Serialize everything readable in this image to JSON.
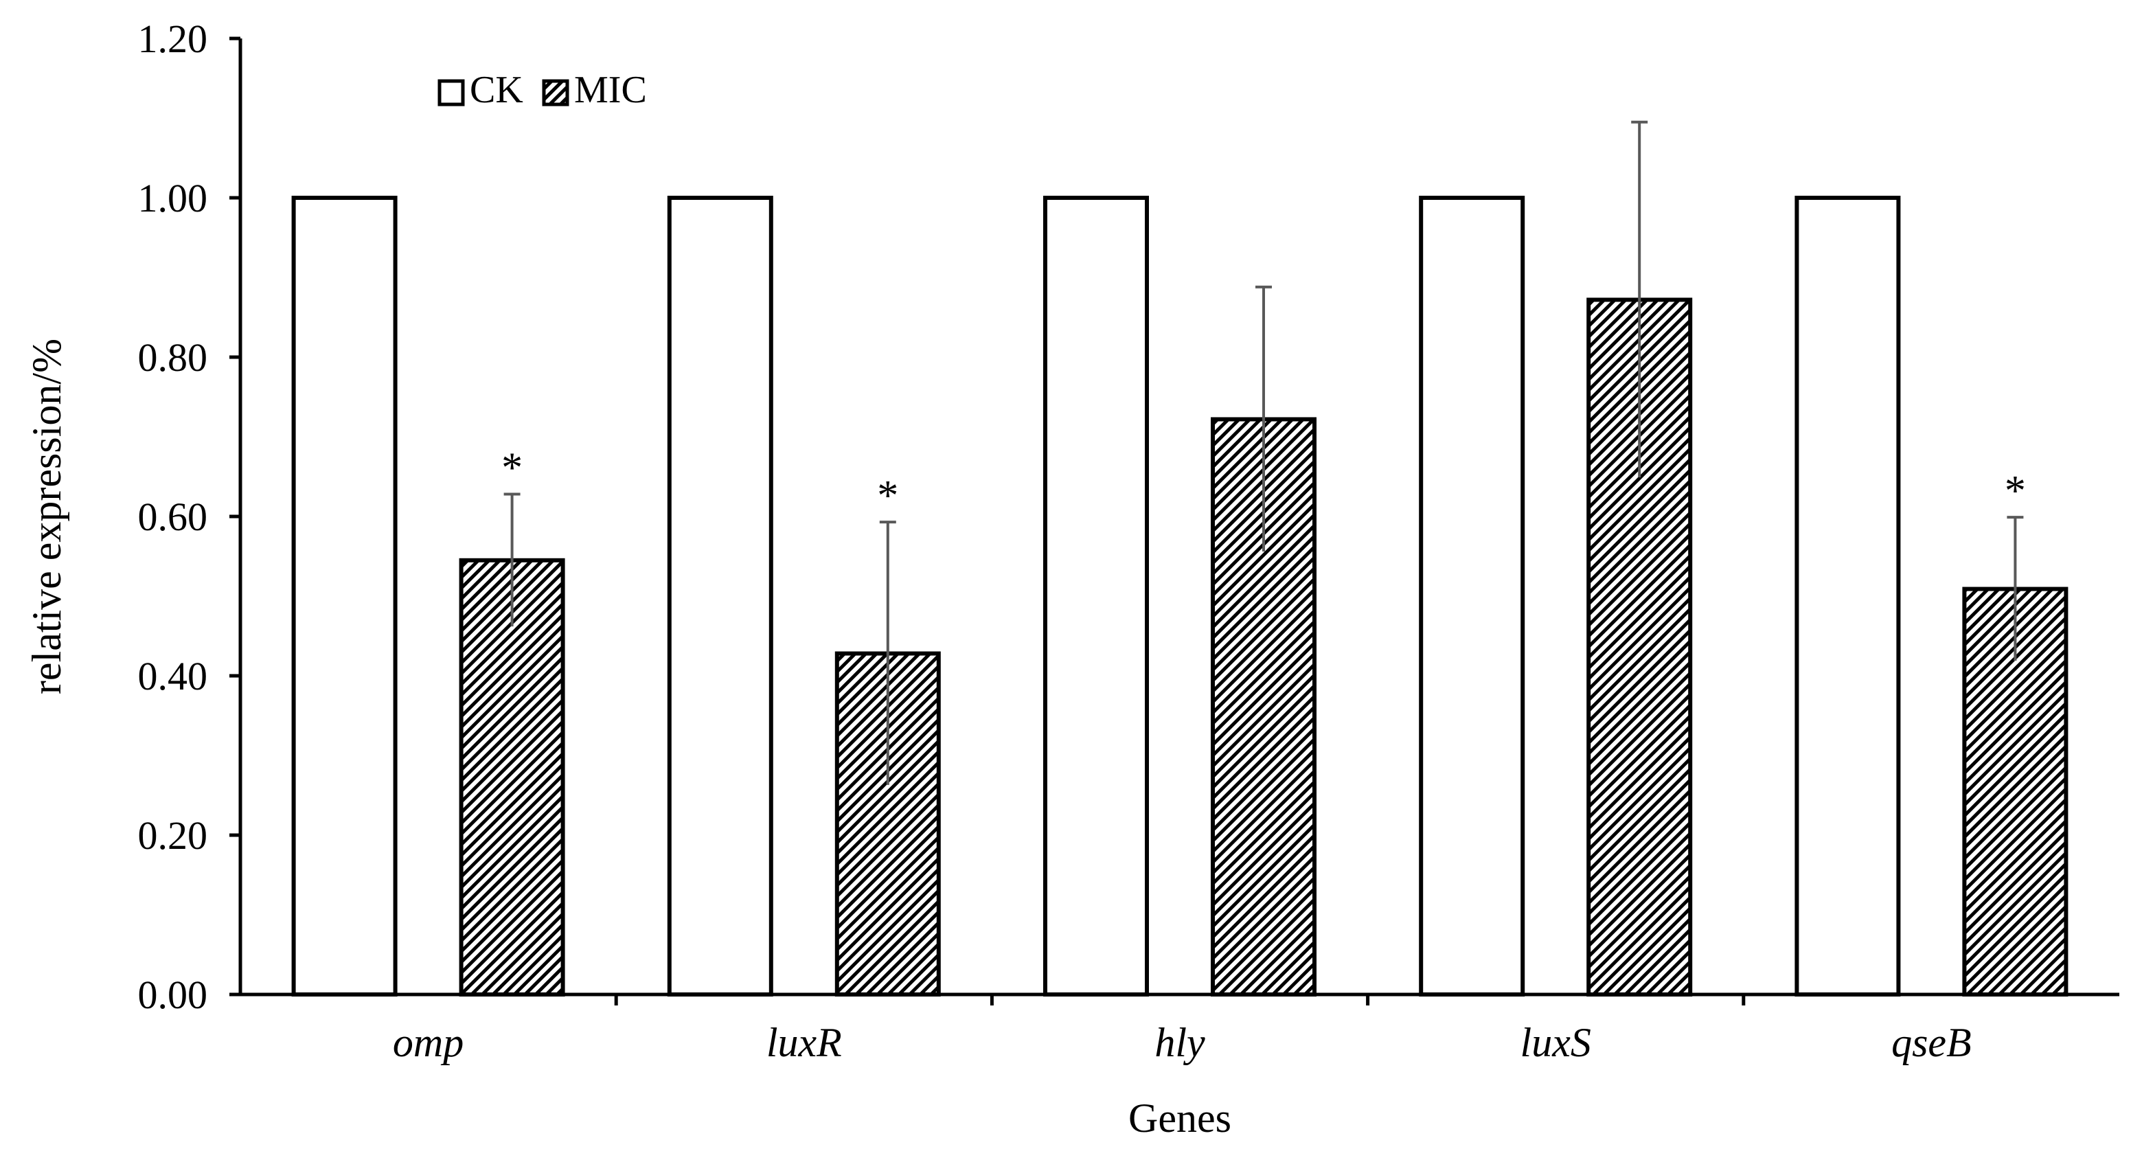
{
  "chart_data": {
    "type": "bar",
    "xlabel": "Genes",
    "ylabel": "relative expression/%",
    "ylim": [
      0,
      1.2
    ],
    "yticks": [
      "0.00",
      "0.20",
      "0.40",
      "0.60",
      "0.80",
      "1.00",
      "1.20"
    ],
    "categories": [
      "omp",
      "luxR",
      "hly",
      "luxS",
      "qseB"
    ],
    "grid": false,
    "legend_position": "top-left",
    "series": [
      {
        "name": "CK",
        "fill": "white",
        "values": [
          1.0,
          1.0,
          1.0,
          1.0,
          1.0
        ],
        "errors": [
          0,
          0,
          0,
          0,
          0
        ],
        "significance": [
          "",
          "",
          "",
          "",
          ""
        ]
      },
      {
        "name": "MIC",
        "fill": "hatched",
        "values": [
          0.545,
          0.428,
          0.722,
          0.872,
          0.509
        ],
        "errors": [
          0.083,
          0.165,
          0.166,
          0.223,
          0.09
        ],
        "significance": [
          "*",
          "*",
          "",
          "",
          "*"
        ]
      }
    ],
    "colors": {
      "bar_edge": "#000000",
      "error_bar": "#595959",
      "hatch": "#000000",
      "background": "#ffffff"
    }
  }
}
